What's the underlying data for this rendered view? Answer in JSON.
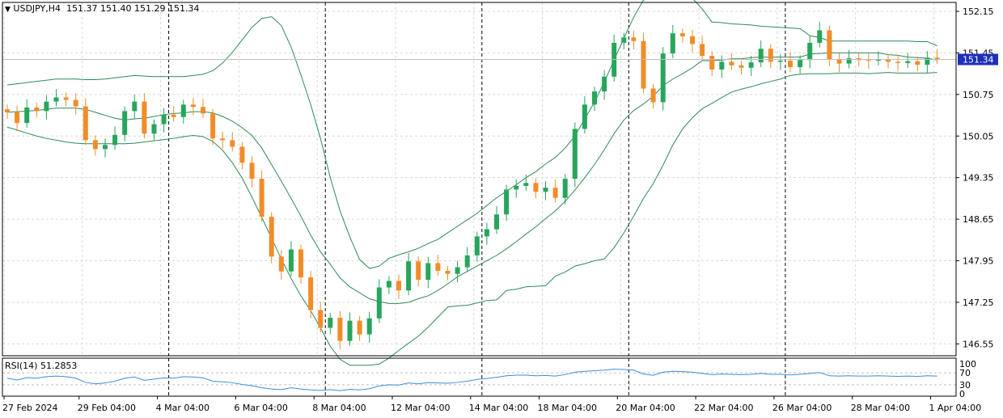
{
  "header": {
    "symbol": "USDJPY,H4",
    "ohlc": "151.37 151.40 151.29 151.34",
    "rsi_label": "RSI(14) 51.2853"
  },
  "colors": {
    "bull": "#26a65b",
    "bear": "#f28c28",
    "band": "#2e8b57",
    "rsi": "#3c8dd8",
    "grid": "#d9d9d9",
    "price_tag_bg": "#1c2fb8"
  },
  "chart_data": [
    {
      "type": "candlestick",
      "title": "USDJPY,H4",
      "price_tag": "151.34",
      "y_ticks": [
        "152.15",
        "151.45",
        "150.75",
        "150.05",
        "149.35",
        "148.65",
        "147.95",
        "147.25",
        "146.55"
      ],
      "ylim": [
        146.35,
        152.3
      ],
      "x_ticks": [
        "27 Feb 2024",
        "29 Feb 04:00",
        "4 Mar 04:00",
        "6 Mar 04:00",
        "8 Mar 04:00",
        "12 Mar 04:00",
        "14 Mar 04:00",
        "18 Mar 04:00",
        "20 Mar 04:00",
        "22 Mar 04:00",
        "26 Mar 04:00",
        "28 Mar 04:00",
        "1 Apr 04:00"
      ],
      "separator_ticks": [
        2,
        4,
        6,
        8,
        10
      ],
      "close": [
        150.45,
        150.27,
        150.53,
        150.47,
        150.63,
        150.7,
        150.66,
        150.55,
        149.98,
        149.83,
        149.9,
        150.07,
        150.47,
        150.63,
        150.09,
        150.25,
        150.41,
        150.37,
        150.58,
        150.54,
        150.43,
        150.01,
        149.98,
        149.87,
        149.6,
        149.33,
        148.69,
        148.02,
        147.77,
        148.14,
        147.67,
        147.12,
        146.82,
        146.99,
        146.6,
        146.94,
        146.71,
        146.98,
        147.5,
        147.61,
        147.45,
        147.94,
        147.63,
        147.91,
        147.78,
        147.73,
        147.84,
        148.04,
        148.36,
        148.48,
        148.73,
        149.15,
        149.21,
        149.26,
        149.11,
        149.18,
        149.01,
        149.33,
        150.17,
        150.58,
        150.8,
        151.05,
        151.62,
        151.71,
        151.65,
        150.85,
        150.62,
        151.44,
        151.78,
        151.73,
        151.6,
        151.4,
        151.17,
        151.3,
        151.24,
        151.2,
        151.29,
        151.52,
        151.3,
        151.32,
        151.21,
        151.33,
        151.62,
        151.83,
        151.34,
        151.27,
        151.36,
        151.33,
        151.32,
        151.34,
        151.3,
        151.28,
        151.31,
        151.25,
        151.37,
        151.34
      ],
      "series": [
        {
          "name": "Upper Band",
          "values": [
            150.91,
            150.93,
            150.95,
            150.97,
            150.99,
            151.01,
            151.01,
            151.01,
            151.0,
            151.0,
            151.01,
            151.03,
            151.05,
            151.07,
            151.06,
            151.05,
            151.05,
            151.05,
            151.05,
            151.07,
            151.09,
            151.15,
            151.28,
            151.46,
            151.67,
            151.88,
            152.03,
            152.06,
            151.91,
            151.55,
            151.08,
            150.58,
            150.01,
            149.35,
            148.79,
            148.35,
            147.97,
            147.82,
            147.86,
            147.99,
            148.05,
            148.1,
            148.16,
            148.24,
            148.31,
            148.42,
            148.53,
            148.64,
            148.75,
            148.88,
            149.01,
            149.12,
            149.23,
            149.35,
            149.45,
            149.58,
            149.69,
            149.85,
            150.05,
            150.34,
            150.62,
            150.96,
            151.33,
            151.7,
            152.05,
            152.34,
            152.37,
            152.37,
            152.37,
            152.37,
            152.37,
            152.19,
            151.97,
            151.96,
            151.94,
            151.93,
            151.92,
            151.9,
            151.89,
            151.88,
            151.87,
            151.86,
            151.74,
            151.71,
            151.65,
            151.65,
            151.65,
            151.65,
            151.65,
            151.65,
            151.65,
            151.65,
            151.65,
            151.64,
            151.64,
            151.57
          ]
        },
        {
          "name": "Middle Band",
          "values": [
            150.45,
            150.46,
            150.47,
            150.48,
            150.5,
            150.52,
            150.52,
            150.52,
            150.5,
            150.45,
            150.4,
            150.35,
            150.32,
            150.34,
            150.35,
            150.38,
            150.41,
            150.43,
            150.44,
            150.46,
            150.46,
            150.44,
            150.38,
            150.3,
            150.19,
            150.06,
            149.85,
            149.57,
            149.29,
            149.0,
            148.7,
            148.38,
            148.1,
            147.89,
            147.66,
            147.51,
            147.41,
            147.31,
            147.26,
            147.23,
            147.23,
            147.25,
            147.31,
            147.36,
            147.45,
            147.56,
            147.68,
            147.77,
            147.86,
            147.95,
            148.04,
            148.15,
            148.27,
            148.4,
            148.52,
            148.66,
            148.79,
            148.95,
            149.14,
            149.35,
            149.57,
            149.82,
            150.09,
            150.32,
            150.48,
            150.59,
            150.72,
            150.9,
            151.01,
            151.1,
            151.2,
            151.32,
            151.32,
            151.33,
            151.35,
            151.35,
            151.37,
            151.38,
            151.38,
            151.38,
            151.38,
            151.38,
            151.43,
            151.44,
            151.45,
            151.45,
            151.45,
            151.45,
            151.45,
            151.45,
            151.42,
            151.41,
            151.38,
            151.37,
            151.36,
            151.33
          ]
        },
        {
          "name": "Lower Band",
          "values": [
            150.2,
            150.15,
            150.1,
            150.05,
            150.01,
            149.98,
            149.95,
            149.93,
            149.92,
            149.92,
            149.92,
            149.92,
            149.92,
            149.93,
            149.95,
            149.97,
            149.99,
            150.01,
            150.04,
            150.06,
            150.04,
            149.96,
            149.81,
            149.6,
            149.34,
            149.02,
            148.68,
            148.33,
            147.98,
            147.65,
            147.36,
            147.11,
            146.82,
            146.51,
            146.29,
            146.19,
            146.19,
            146.19,
            146.21,
            146.31,
            146.44,
            146.56,
            146.68,
            146.83,
            147.0,
            147.17,
            147.19,
            147.2,
            147.24,
            147.28,
            147.29,
            147.45,
            147.47,
            147.51,
            147.52,
            147.53,
            147.69,
            147.76,
            147.86,
            147.9,
            147.95,
            147.98,
            148.17,
            148.42,
            148.7,
            149.0,
            149.25,
            149.56,
            149.9,
            150.17,
            150.36,
            150.51,
            150.6,
            150.7,
            150.79,
            150.84,
            150.88,
            150.93,
            150.97,
            151.01,
            151.07,
            151.09,
            151.1,
            151.1,
            151.1,
            151.11,
            151.11,
            151.11,
            151.1,
            151.11,
            151.12,
            151.11,
            151.11,
            151.11,
            151.11,
            151.12
          ]
        }
      ]
    },
    {
      "type": "line",
      "title": "RSI(14) 51.2853",
      "y_ticks": [
        "100",
        "70",
        "30",
        "0"
      ],
      "ylim": [
        0,
        100
      ],
      "series": [
        {
          "name": "RSI(14)",
          "values": [
            52,
            46,
            54,
            52,
            57,
            59,
            57,
            52,
            38,
            33,
            36,
            42,
            52,
            56,
            45,
            49,
            53,
            52,
            57,
            56,
            53,
            42,
            40,
            37,
            31,
            27,
            20,
            16,
            14,
            20,
            16,
            13,
            11,
            14,
            10,
            15,
            13,
            17,
            26,
            30,
            29,
            36,
            33,
            37,
            36,
            35,
            38,
            42,
            48,
            51,
            55,
            60,
            62,
            62,
            60,
            61,
            59,
            64,
            72,
            75,
            77,
            79,
            82,
            81,
            79,
            66,
            62,
            72,
            75,
            74,
            72,
            68,
            64,
            66,
            65,
            64,
            65,
            68,
            65,
            65,
            63,
            65,
            68,
            71,
            60,
            59,
            60,
            59,
            59,
            60,
            59,
            58,
            59,
            58,
            60,
            59
          ]
        }
      ]
    }
  ]
}
